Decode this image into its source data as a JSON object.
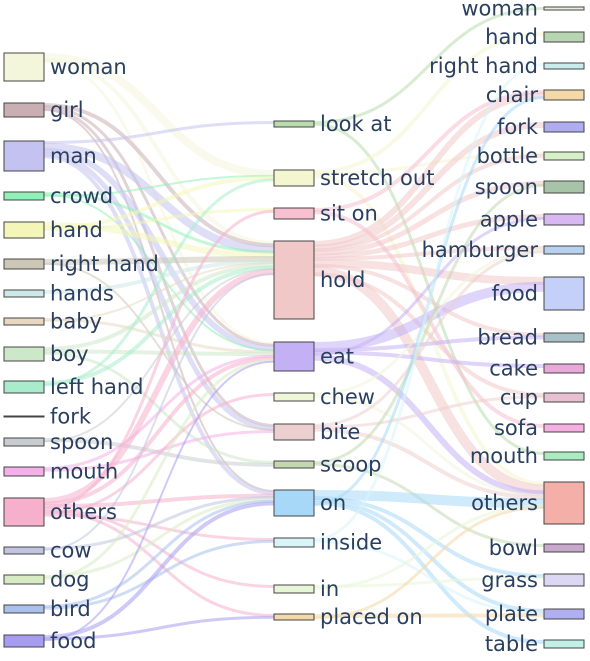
{
  "sankey": {
    "sources": [
      {
        "label": "woman",
        "color": "#f4f6dc"
      },
      {
        "label": "girl",
        "color": "#c9aeb4"
      },
      {
        "label": "man",
        "color": "#c4c2f0"
      },
      {
        "label": "crowd",
        "color": "#8ff0b8"
      },
      {
        "label": "hand",
        "color": "#f4f6b8"
      },
      {
        "label": "right hand",
        "color": "#ccc6b6"
      },
      {
        "label": "hands",
        "color": "#cde8e8"
      },
      {
        "label": "baby",
        "color": "#e8d8c0"
      },
      {
        "label": "boy",
        "color": "#cde8c8"
      },
      {
        "label": "left hand",
        "color": "#a8eccc"
      },
      {
        "label": "fork",
        "color": "#3a3a3a"
      },
      {
        "label": "spoon",
        "color": "#c8ccd0"
      },
      {
        "label": "mouth",
        "color": "#f4b0e8"
      },
      {
        "label": "others",
        "color": "#f6b0cc"
      },
      {
        "label": "cow",
        "color": "#c0c4e0"
      },
      {
        "label": "dog",
        "color": "#d8ecc4"
      },
      {
        "label": "bird",
        "color": "#a8c0ec"
      },
      {
        "label": "food",
        "color": "#a89cf0"
      }
    ],
    "verbs": [
      {
        "label": "look at",
        "color": "#b8dcac"
      },
      {
        "label": "stretch out",
        "color": "#f4f6d0"
      },
      {
        "label": "sit on",
        "color": "#f6c0d0"
      },
      {
        "label": "hold",
        "color": "#f0c8c8"
      },
      {
        "label": "eat",
        "color": "#c4b0f4"
      },
      {
        "label": "chew",
        "color": "#f0f6d8"
      },
      {
        "label": "bite",
        "color": "#ecd0d0"
      },
      {
        "label": "scoop",
        "color": "#c4d8b0"
      },
      {
        "label": "on",
        "color": "#a8d8f8"
      },
      {
        "label": "inside",
        "color": "#d8f4f8"
      },
      {
        "label": "in",
        "color": "#e8f6d8"
      },
      {
        "label": "placed on",
        "color": "#f4d8a8"
      }
    ],
    "targets": [
      {
        "label": "woman",
        "color": "#e8f0dc"
      },
      {
        "label": "hand",
        "color": "#b8d4b0"
      },
      {
        "label": "right hand",
        "color": "#c8ecec"
      },
      {
        "label": "chair",
        "color": "#f4d8a8"
      },
      {
        "label": "fork",
        "color": "#b0acf0"
      },
      {
        "label": "bottle",
        "color": "#d8f0c8"
      },
      {
        "label": "spoon",
        "color": "#a8c4a8"
      },
      {
        "label": "apple",
        "color": "#d8b8f0"
      },
      {
        "label": "hamburger",
        "color": "#b8d0f0"
      },
      {
        "label": "food",
        "color": "#c4d0f8"
      },
      {
        "label": "bread",
        "color": "#a8c0c8"
      },
      {
        "label": "cake",
        "color": "#e8a8d8"
      },
      {
        "label": "cup",
        "color": "#e8c0d0"
      },
      {
        "label": "sofa",
        "color": "#f4b0e0"
      },
      {
        "label": "mouth",
        "color": "#a8ecc0"
      },
      {
        "label": "others",
        "color": "#f4b0a8"
      },
      {
        "label": "bowl",
        "color": "#c8a8cc"
      },
      {
        "label": "grass",
        "color": "#dcd8f4"
      },
      {
        "label": "plate",
        "color": "#b0b0f0"
      },
      {
        "label": "table",
        "color": "#c0f0e8"
      }
    ]
  }
}
